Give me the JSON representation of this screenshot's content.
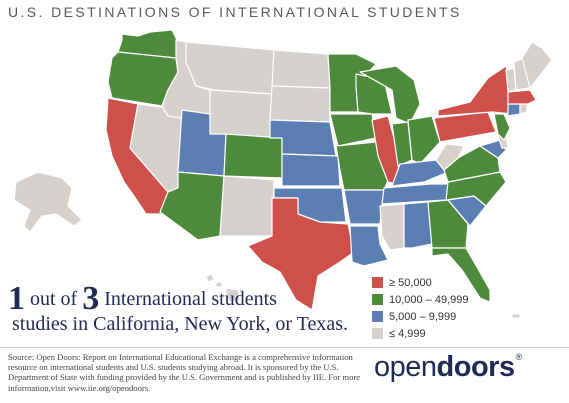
{
  "title": "U.S. DESTINATIONS OF INTERNATIONAL STUDENTS",
  "colors": {
    "tier1": "#cf4f4b",
    "tier2": "#4d8a3b",
    "tier3": "#5c7fb3",
    "tier4": "#d6d0cc",
    "navy": "#1f2a55"
  },
  "legend": [
    {
      "label": "≥ 50,000",
      "color": "#cf4f4b"
    },
    {
      "label": "10,000 – 49,999",
      "color": "#4d8a3b"
    },
    {
      "label": "5,000 – 9,999",
      "color": "#5c7fb3"
    },
    {
      "label": "≤ 4,999",
      "color": "#d6d0cc"
    }
  ],
  "tagline": {
    "num1": "1",
    "out_of": " out of ",
    "num2": "3",
    "rest": " International students",
    "line2": "studies in California, New York, or Texas."
  },
  "source": "Source: Open Doors: Report on International Educational Exchange is a comprehensive information resource on international students and U.S. students studying abroad.  It is sponsored by the U.S. Department of State with funding provided by the U.S. Government and is published by IIE. For more information,visit www.iie.org/opendoors.",
  "logo": {
    "part1": "open",
    "part2": "doors",
    "mark": "®"
  },
  "states": [
    {
      "name": "Washington",
      "tier": "10,000 – 49,999"
    },
    {
      "name": "Oregon",
      "tier": "10,000 – 49,999"
    },
    {
      "name": "California",
      "tier": "≥ 50,000"
    },
    {
      "name": "Nevada",
      "tier": "≤ 4,999"
    },
    {
      "name": "Idaho",
      "tier": "≤ 4,999"
    },
    {
      "name": "Montana",
      "tier": "≤ 4,999"
    },
    {
      "name": "Wyoming",
      "tier": "≤ 4,999"
    },
    {
      "name": "Utah",
      "tier": "5,000 – 9,999"
    },
    {
      "name": "Arizona",
      "tier": "10,000 – 49,999"
    },
    {
      "name": "Colorado",
      "tier": "10,000 – 49,999"
    },
    {
      "name": "New Mexico",
      "tier": "≤ 4,999"
    },
    {
      "name": "North Dakota",
      "tier": "≤ 4,999"
    },
    {
      "name": "South Dakota",
      "tier": "≤ 4,999"
    },
    {
      "name": "Nebraska",
      "tier": "5,000 – 9,999"
    },
    {
      "name": "Kansas",
      "tier": "5,000 – 9,999"
    },
    {
      "name": "Oklahoma",
      "tier": "5,000 – 9,999"
    },
    {
      "name": "Texas",
      "tier": "≥ 50,000"
    },
    {
      "name": "Minnesota",
      "tier": "10,000 – 49,999"
    },
    {
      "name": "Iowa",
      "tier": "10,000 – 49,999"
    },
    {
      "name": "Missouri",
      "tier": "10,000 – 49,999"
    },
    {
      "name": "Arkansas",
      "tier": "5,000 – 9,999"
    },
    {
      "name": "Louisiana",
      "tier": "5,000 – 9,999"
    },
    {
      "name": "Wisconsin",
      "tier": "10,000 – 49,999"
    },
    {
      "name": "Illinois",
      "tier": "≥ 50,000"
    },
    {
      "name": "Michigan",
      "tier": "10,000 – 49,999"
    },
    {
      "name": "Indiana",
      "tier": "10,000 – 49,999"
    },
    {
      "name": "Ohio",
      "tier": "10,000 – 49,999"
    },
    {
      "name": "Kentucky",
      "tier": "5,000 – 9,999"
    },
    {
      "name": "Tennessee",
      "tier": "5,000 – 9,999"
    },
    {
      "name": "Mississippi",
      "tier": "≤ 4,999"
    },
    {
      "name": "Alabama",
      "tier": "5,000 – 9,999"
    },
    {
      "name": "Georgia",
      "tier": "10,000 – 49,999"
    },
    {
      "name": "Florida",
      "tier": "10,000 – 49,999"
    },
    {
      "name": "South Carolina",
      "tier": "5,000 – 9,999"
    },
    {
      "name": "North Carolina",
      "tier": "10,000 – 49,999"
    },
    {
      "name": "Virginia",
      "tier": "10,000 – 49,999"
    },
    {
      "name": "West Virginia",
      "tier": "≤ 4,999"
    },
    {
      "name": "Pennsylvania",
      "tier": "≥ 50,000"
    },
    {
      "name": "New York",
      "tier": "≥ 50,000"
    },
    {
      "name": "Maryland",
      "tier": "5,000 – 9,999"
    },
    {
      "name": "Delaware",
      "tier": "≤ 4,999"
    },
    {
      "name": "New Jersey",
      "tier": "10,000 – 49,999"
    },
    {
      "name": "Connecticut",
      "tier": "5,000 – 9,999"
    },
    {
      "name": "Rhode Island",
      "tier": "≤ 4,999"
    },
    {
      "name": "Massachusetts",
      "tier": "≥ 50,000"
    },
    {
      "name": "Vermont",
      "tier": "≤ 4,999"
    },
    {
      "name": "New Hampshire",
      "tier": "≤ 4,999"
    },
    {
      "name": "Maine",
      "tier": "≤ 4,999"
    },
    {
      "name": "Alaska",
      "tier": "≤ 4,999"
    },
    {
      "name": "Hawaii",
      "tier": "≤ 4,999"
    }
  ]
}
